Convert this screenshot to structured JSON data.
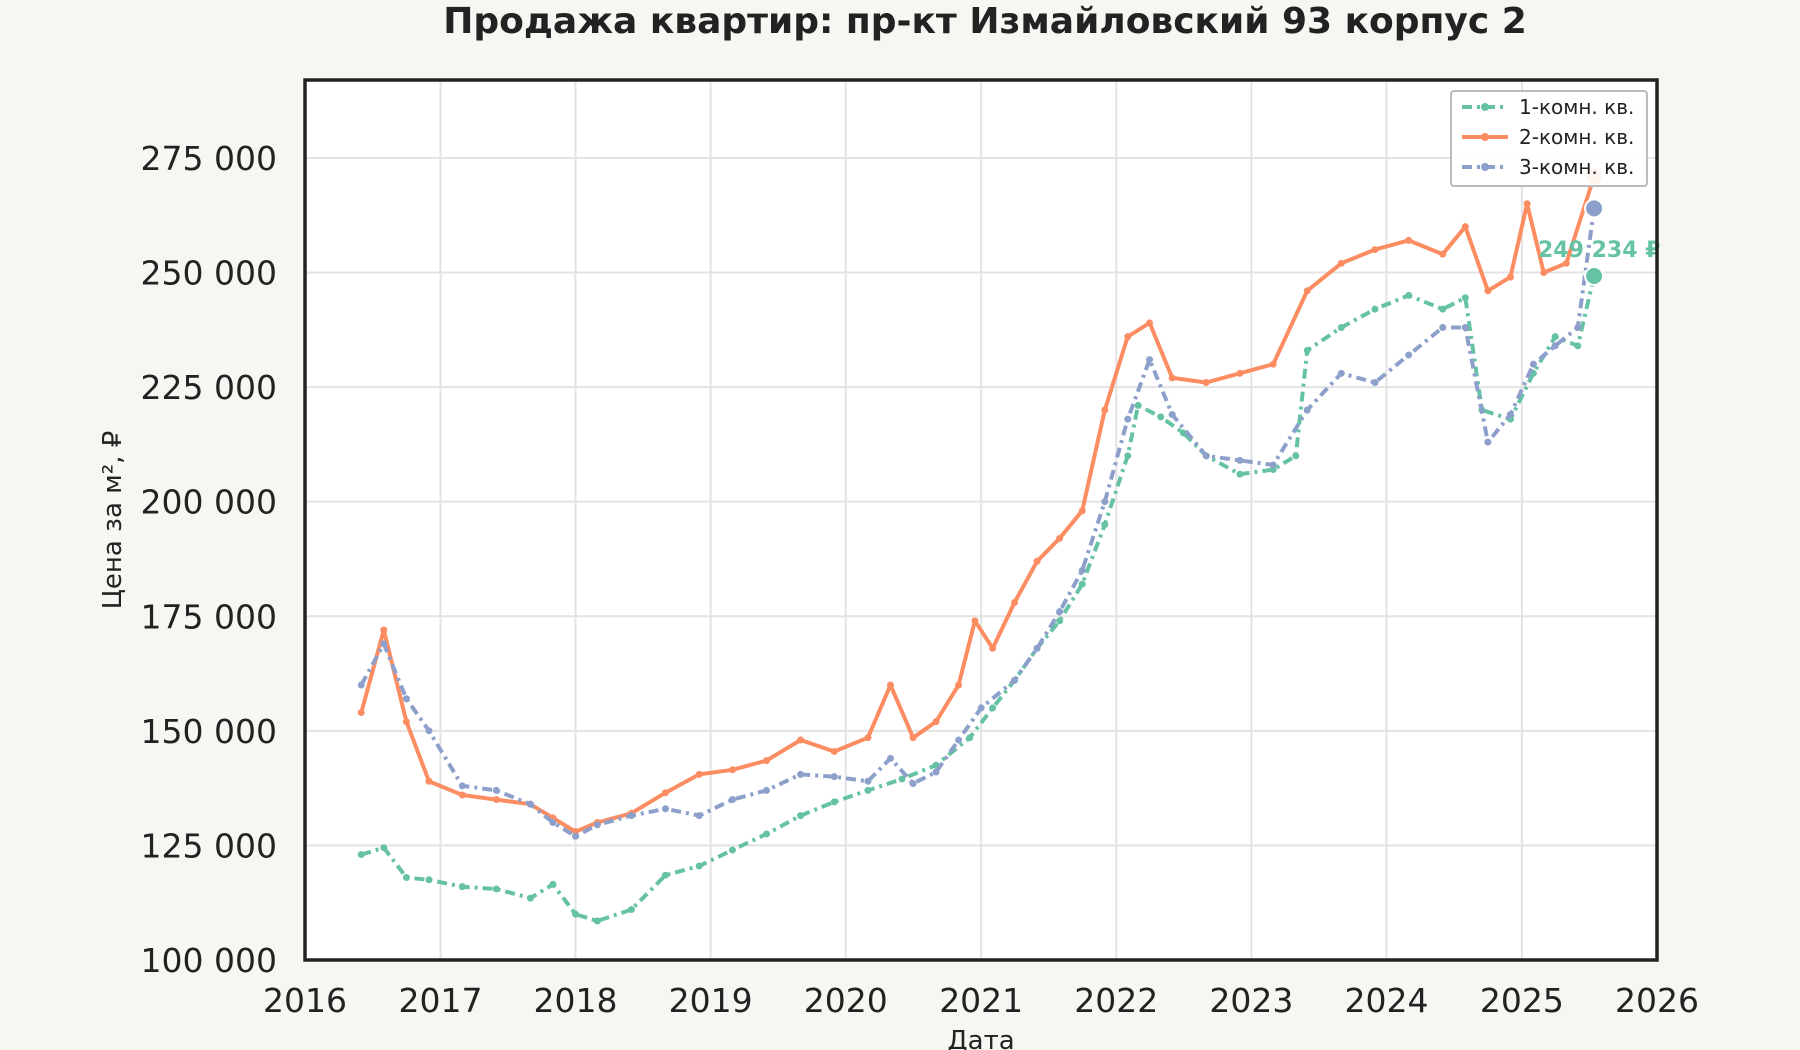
{
  "chart_data": {
    "type": "line",
    "title": "Продажа квартир: пр-кт Измайловский 93 корпус 2",
    "xlabel": "Дата",
    "ylabel": "Цена за м², ₽",
    "xlim": [
      "2016-01-01",
      "2026-01-01"
    ],
    "ylim": [
      100000,
      292000
    ],
    "x_ticks": [
      "2016",
      "2017",
      "2018",
      "2019",
      "2020",
      "2021",
      "2022",
      "2023",
      "2024",
      "2025",
      "2026"
    ],
    "y_ticks": [
      100000,
      125000,
      150000,
      175000,
      200000,
      225000,
      250000,
      275000
    ],
    "y_tick_labels": [
      "100 000",
      "125 000",
      "150 000",
      "175 000",
      "200 000",
      "225 000",
      "250 000",
      "275 000"
    ],
    "grid": true,
    "legend_position": "top-right",
    "series": [
      {
        "name": "1-комн. кв.",
        "color": "#66c2a5",
        "dash": "dashdot",
        "points": [
          [
            "2016-06-01",
            123000
          ],
          [
            "2016-08-01",
            124500
          ],
          [
            "2016-10-01",
            118000
          ],
          [
            "2016-12-01",
            117500
          ],
          [
            "2017-03-01",
            116000
          ],
          [
            "2017-06-01",
            115500
          ],
          [
            "2017-09-01",
            113500
          ],
          [
            "2017-11-01",
            116500
          ],
          [
            "2018-01-01",
            110000
          ],
          [
            "2018-03-01",
            108500
          ],
          [
            "2018-06-01",
            111000
          ],
          [
            "2018-09-01",
            118500
          ],
          [
            "2018-12-01",
            120500
          ],
          [
            "2019-03-01",
            124000
          ],
          [
            "2019-06-01",
            127500
          ],
          [
            "2019-09-01",
            131500
          ],
          [
            "2019-12-01",
            134500
          ],
          [
            "2020-03-01",
            137000
          ],
          [
            "2020-06-01",
            139500
          ],
          [
            "2020-09-01",
            142500
          ],
          [
            "2020-12-01",
            148500
          ],
          [
            "2021-02-01",
            155000
          ],
          [
            "2021-04-01",
            161000
          ],
          [
            "2021-06-01",
            168000
          ],
          [
            "2021-08-01",
            174000
          ],
          [
            "2021-10-01",
            182000
          ],
          [
            "2021-12-01",
            195000
          ],
          [
            "2022-02-01",
            210000
          ],
          [
            "2022-03-01",
            221000
          ],
          [
            "2022-05-01",
            218500
          ],
          [
            "2022-07-01",
            215000
          ],
          [
            "2022-09-01",
            210000
          ],
          [
            "2022-12-01",
            206000
          ],
          [
            "2023-03-01",
            207000
          ],
          [
            "2023-05-01",
            210000
          ],
          [
            "2023-06-01",
            233000
          ],
          [
            "2023-09-01",
            238000
          ],
          [
            "2023-12-01",
            242000
          ],
          [
            "2024-03-01",
            245000
          ],
          [
            "2024-06-01",
            242000
          ],
          [
            "2024-08-01",
            244500
          ],
          [
            "2024-09-15",
            220000
          ],
          [
            "2024-12-01",
            218000
          ],
          [
            "2025-02-01",
            228000
          ],
          [
            "2025-04-01",
            236000
          ],
          [
            "2025-06-01",
            234000
          ],
          [
            "2025-07-15",
            249234
          ]
        ]
      },
      {
        "name": "2-комн. кв.",
        "color": "#fc8d62",
        "dash": "solid",
        "points": [
          [
            "2016-06-01",
            154000
          ],
          [
            "2016-08-01",
            172000
          ],
          [
            "2016-10-01",
            152000
          ],
          [
            "2016-12-01",
            139000
          ],
          [
            "2017-03-01",
            136000
          ],
          [
            "2017-06-01",
            135000
          ],
          [
            "2017-09-01",
            134000
          ],
          [
            "2017-11-01",
            131000
          ],
          [
            "2018-01-01",
            128000
          ],
          [
            "2018-03-01",
            130000
          ],
          [
            "2018-06-01",
            132000
          ],
          [
            "2018-09-01",
            136500
          ],
          [
            "2018-12-01",
            140500
          ],
          [
            "2019-03-01",
            141500
          ],
          [
            "2019-06-01",
            143500
          ],
          [
            "2019-09-01",
            148000
          ],
          [
            "2019-12-01",
            145500
          ],
          [
            "2020-03-01",
            148500
          ],
          [
            "2020-05-01",
            160000
          ],
          [
            "2020-07-01",
            148500
          ],
          [
            "2020-09-01",
            152000
          ],
          [
            "2020-11-01",
            160000
          ],
          [
            "2020-12-15",
            174000
          ],
          [
            "2021-02-01",
            168000
          ],
          [
            "2021-04-01",
            178000
          ],
          [
            "2021-06-01",
            187000
          ],
          [
            "2021-08-01",
            192000
          ],
          [
            "2021-10-01",
            198000
          ],
          [
            "2021-12-01",
            220000
          ],
          [
            "2022-02-01",
            236000
          ],
          [
            "2022-04-01",
            239000
          ],
          [
            "2022-06-01",
            227000
          ],
          [
            "2022-09-01",
            226000
          ],
          [
            "2022-12-01",
            228000
          ],
          [
            "2023-03-01",
            230000
          ],
          [
            "2023-06-01",
            246000
          ],
          [
            "2023-09-01",
            252000
          ],
          [
            "2023-12-01",
            255000
          ],
          [
            "2024-03-01",
            257000
          ],
          [
            "2024-06-01",
            254000
          ],
          [
            "2024-08-01",
            260000
          ],
          [
            "2024-10-01",
            246000
          ],
          [
            "2024-12-01",
            249000
          ],
          [
            "2025-01-15",
            265000
          ],
          [
            "2025-03-01",
            250000
          ],
          [
            "2025-05-01",
            252000
          ],
          [
            "2025-07-15",
            271000
          ]
        ]
      },
      {
        "name": "3-комн. кв.",
        "color": "#8da0cb",
        "dash": "dashdot",
        "points": [
          [
            "2016-06-01",
            160000
          ],
          [
            "2016-08-01",
            169000
          ],
          [
            "2016-10-01",
            157000
          ],
          [
            "2016-12-01",
            150000
          ],
          [
            "2017-03-01",
            138000
          ],
          [
            "2017-06-01",
            137000
          ],
          [
            "2017-09-01",
            134000
          ],
          [
            "2017-11-01",
            130000
          ],
          [
            "2018-01-01",
            127000
          ],
          [
            "2018-03-01",
            129500
          ],
          [
            "2018-06-01",
            131500
          ],
          [
            "2018-09-01",
            133000
          ],
          [
            "2018-12-01",
            131500
          ],
          [
            "2019-03-01",
            135000
          ],
          [
            "2019-06-01",
            137000
          ],
          [
            "2019-09-01",
            140500
          ],
          [
            "2019-12-01",
            140000
          ],
          [
            "2020-03-01",
            139000
          ],
          [
            "2020-05-01",
            144000
          ],
          [
            "2020-07-01",
            138500
          ],
          [
            "2020-09-01",
            141000
          ],
          [
            "2020-11-01",
            148000
          ],
          [
            "2021-01-01",
            155000
          ],
          [
            "2021-04-01",
            161000
          ],
          [
            "2021-06-01",
            168000
          ],
          [
            "2021-08-01",
            176000
          ],
          [
            "2021-10-01",
            185000
          ],
          [
            "2021-12-01",
            200000
          ],
          [
            "2022-02-01",
            218000
          ],
          [
            "2022-04-01",
            231000
          ],
          [
            "2022-06-01",
            219000
          ],
          [
            "2022-09-01",
            210000
          ],
          [
            "2022-12-01",
            209000
          ],
          [
            "2023-03-01",
            208000
          ],
          [
            "2023-06-01",
            220000
          ],
          [
            "2023-09-01",
            228000
          ],
          [
            "2023-12-01",
            226000
          ],
          [
            "2024-03-01",
            232000
          ],
          [
            "2024-06-01",
            238000
          ],
          [
            "2024-08-01",
            238000
          ],
          [
            "2024-10-01",
            213000
          ],
          [
            "2024-12-01",
            219000
          ],
          [
            "2025-02-01",
            230000
          ],
          [
            "2025-04-01",
            234000
          ],
          [
            "2025-06-01",
            238000
          ],
          [
            "2025-07-15",
            264000
          ]
        ]
      }
    ],
    "last_points": [
      {
        "series": "2-комн. кв.",
        "date": "2025-07-15",
        "value": 271000
      },
      {
        "series": "3-комн. кв.",
        "date": "2025-07-15",
        "value": 264000
      },
      {
        "series": "1-комн. кв.",
        "date": "2025-07-15",
        "value": 249234
      }
    ],
    "annotation": {
      "series": "1-комн. кв.",
      "text": "249 234 ₽"
    }
  }
}
